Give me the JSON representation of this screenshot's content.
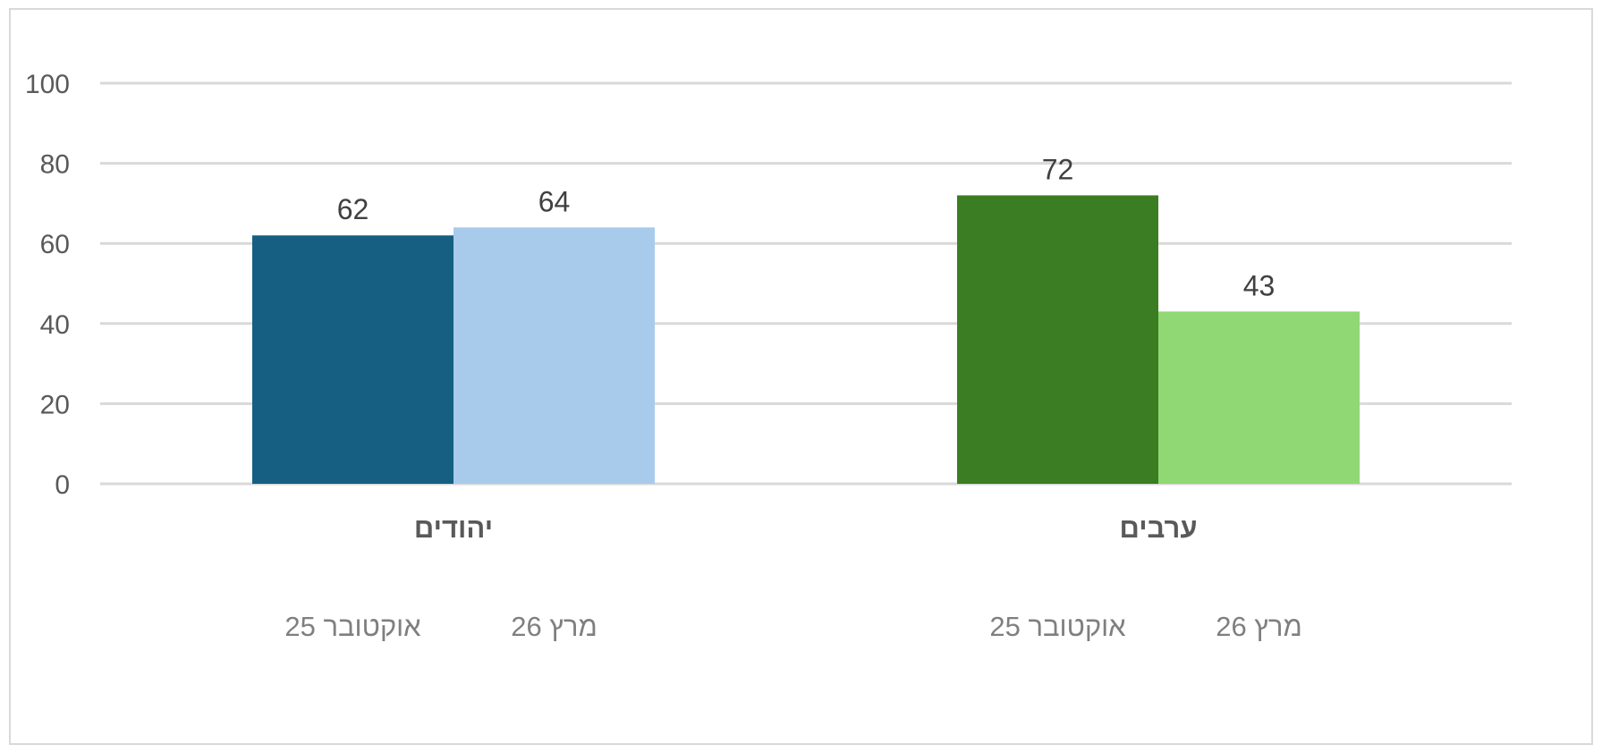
{
  "chart_data": {
    "type": "bar",
    "categories": [
      "יהודים",
      "ערבים"
    ],
    "series": [
      {
        "name": "אוקטובר 25",
        "values": [
          62,
          72
        ]
      },
      {
        "name": "מרץ 26",
        "values": [
          64,
          43
        ]
      }
    ],
    "bar_colors": [
      [
        "#175f82",
        "#3b7d23"
      ],
      [
        "#a8cbec",
        "#8fd874"
      ]
    ],
    "ylim": [
      0,
      100
    ],
    "yticks": [
      0,
      20,
      40,
      60,
      80,
      100
    ],
    "ytick_labels": [
      "0",
      "20",
      "40",
      "60",
      "80",
      "100"
    ],
    "grid": true,
    "gridline_color": "#d9d9d9",
    "legend_position": "under each category group",
    "legend_groups": [
      {
        "category": "יהודים",
        "labels": [
          "אוקטובר 25",
          "מרץ 26"
        ]
      },
      {
        "category": "ערבים",
        "labels": [
          "אוקטובר 25",
          "מרץ 26"
        ]
      }
    ]
  }
}
